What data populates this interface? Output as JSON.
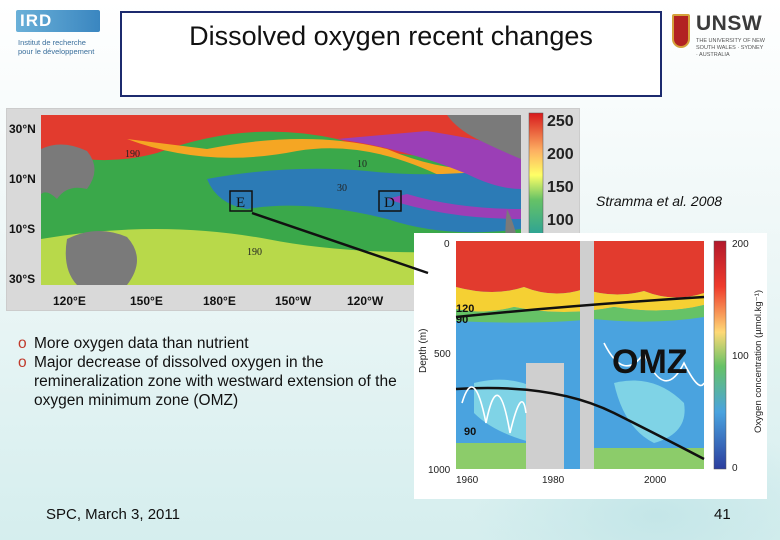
{
  "header": {
    "title": "Dissolved oxygen recent changes"
  },
  "logos": {
    "ird": {
      "letters": "IRD",
      "subtitle_line1": "Institut de recherche",
      "subtitle_line2": "pour le développement"
    },
    "unsw": {
      "name": "UNSW",
      "subtitle": "THE UNIVERSITY OF NEW SOUTH WALES · SYDNEY · AUSTRALIA"
    }
  },
  "map_figure": {
    "lat_labels": [
      "30°N",
      "10°N",
      "10°S",
      "30°S"
    ],
    "lon_labels": [
      "120°E",
      "150°E",
      "180°E",
      "150°W",
      "120°W"
    ],
    "colorbar_labels": [
      "250",
      "200",
      "150",
      "100"
    ],
    "contour_labels": [
      "190",
      "10",
      "30",
      "190"
    ],
    "box_labels": [
      "E",
      "D"
    ],
    "colors": {
      "high": "#d7191c",
      "mid_high": "#fdae61",
      "mid": "#7fc97f",
      "low": "#2c7bb6",
      "lowest": "#9b3fb6",
      "land": "#7a7a7a"
    }
  },
  "citation": "Stramma et al. 2008",
  "timeseries_figure": {
    "y_axis_label": "Depth (m)",
    "y_ticks": [
      "0",
      "500",
      "1000"
    ],
    "x_ticks": [
      "1960",
      "1980",
      "2000"
    ],
    "contour_labels": [
      "120",
      "90",
      "90"
    ],
    "annotation": "OMZ",
    "colorbar_label": "Oxygen concentration (µmol.kg⁻¹)",
    "colorbar_ticks": [
      "200",
      "100",
      "0"
    ]
  },
  "bullets": [
    {
      "mark": "o",
      "text": "More oxygen data than nutrient"
    },
    {
      "mark": "o",
      "text": "Major decrease of dissolved oxygen in the remineralization zone with westward extension of the oxygen minimum zone (OMZ)"
    }
  ],
  "footer": {
    "left": "SPC, March 3, 2011",
    "page": "41"
  }
}
